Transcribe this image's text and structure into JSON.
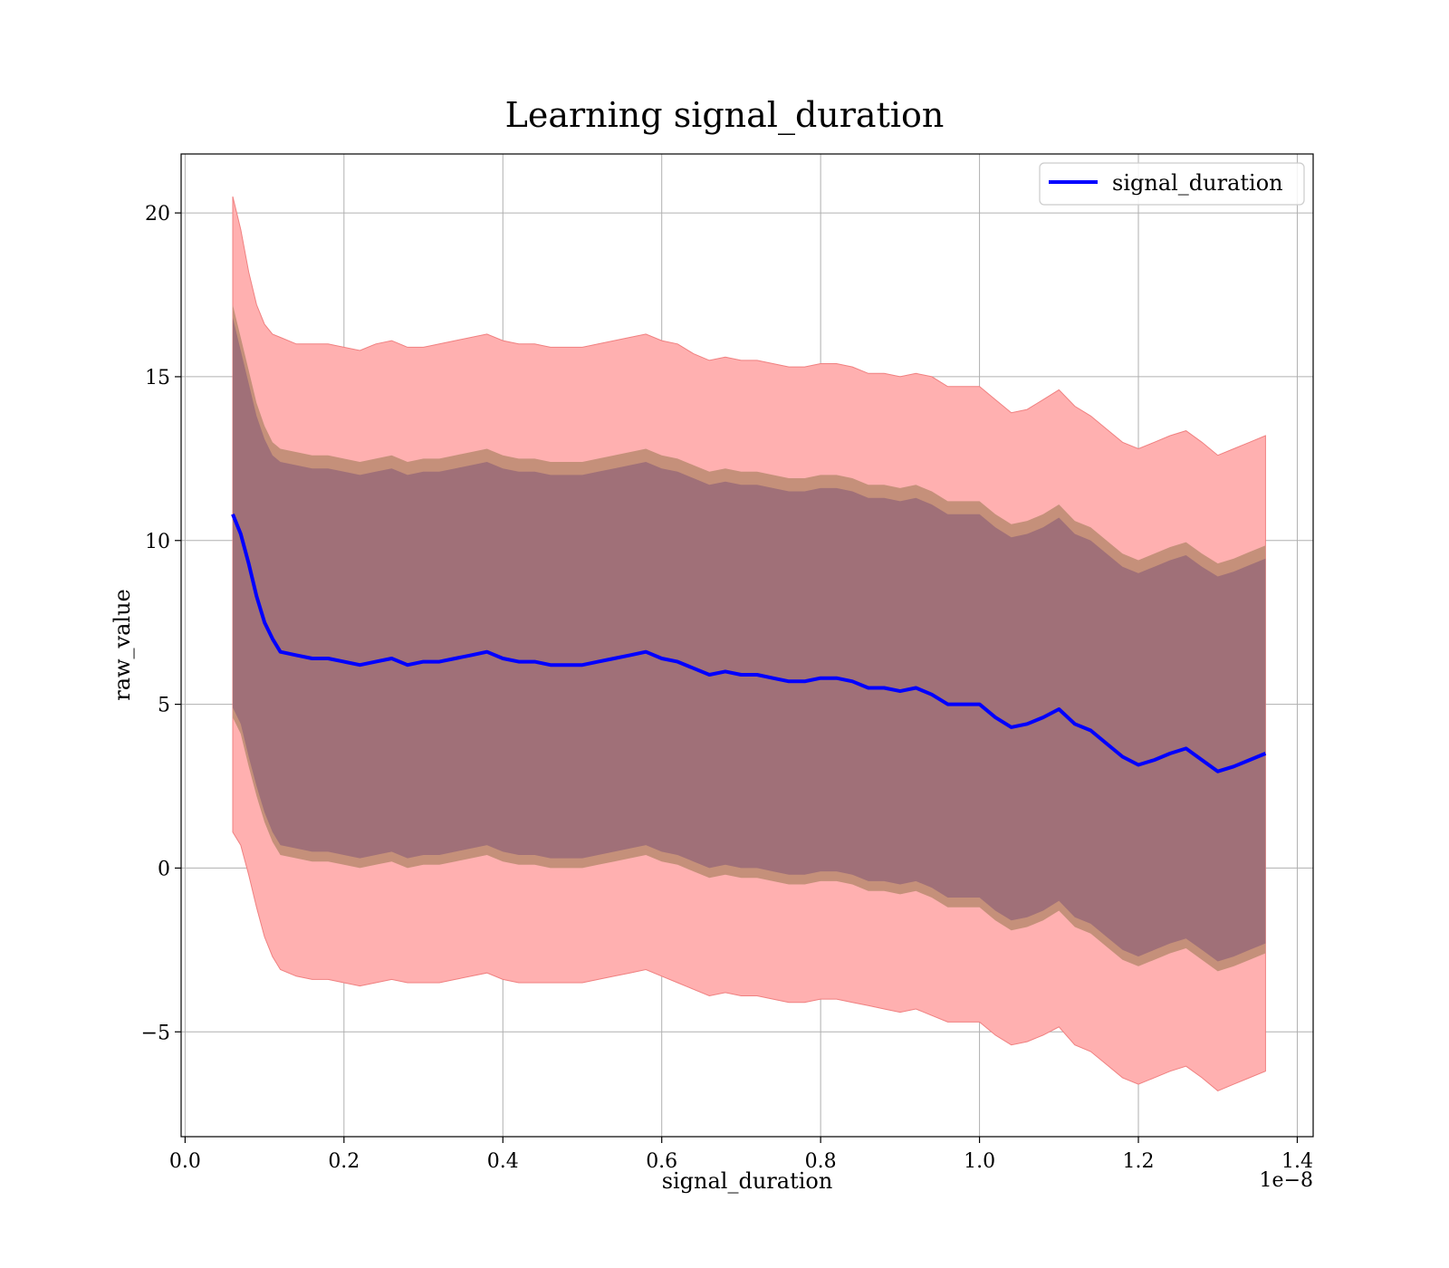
{
  "chart_data": {
    "type": "line",
    "title": "Learning signal_duration",
    "xlabel": "signal_duration",
    "ylabel": "raw_value",
    "x_offset_label": "1e−8",
    "xlim": [
      -0.005,
      1.42
    ],
    "ylim": [
      -8.2,
      21.8
    ],
    "x_ticks": [
      0.0,
      0.2,
      0.4,
      0.6,
      0.8,
      1.0,
      1.2,
      1.4
    ],
    "x_tick_labels": [
      "0.0",
      "0.2",
      "0.4",
      "0.6",
      "0.8",
      "1.0",
      "1.2",
      "1.4"
    ],
    "y_ticks": [
      -5,
      0,
      5,
      10,
      15,
      20
    ],
    "y_tick_labels": [
      "−5",
      "0",
      "5",
      "10",
      "15",
      "20"
    ],
    "grid": true,
    "legend_position": "top-right",
    "colors": {
      "line": "#0000ff",
      "outer_band": "#ffb0b0",
      "outer_band_edge": "#f08080",
      "mid_band": "#c5907a",
      "inner_band": "#a07078"
    },
    "series": [
      {
        "name": "signal_duration",
        "x": [
          0.06,
          0.07,
          0.08,
          0.09,
          0.1,
          0.11,
          0.12,
          0.14,
          0.16,
          0.18,
          0.2,
          0.22,
          0.24,
          0.26,
          0.28,
          0.3,
          0.32,
          0.34,
          0.36,
          0.38,
          0.4,
          0.42,
          0.44,
          0.46,
          0.48,
          0.5,
          0.52,
          0.54,
          0.56,
          0.58,
          0.6,
          0.62,
          0.64,
          0.66,
          0.68,
          0.7,
          0.72,
          0.74,
          0.76,
          0.78,
          0.8,
          0.82,
          0.84,
          0.86,
          0.88,
          0.9,
          0.92,
          0.94,
          0.96,
          0.98,
          1.0,
          1.02,
          1.04,
          1.06,
          1.08,
          1.1,
          1.12,
          1.14,
          1.16,
          1.18,
          1.2,
          1.22,
          1.24,
          1.26,
          1.28,
          1.3,
          1.32,
          1.34,
          1.36
        ],
        "values": [
          10.8,
          10.2,
          9.3,
          8.3,
          7.5,
          7.0,
          6.6,
          6.5,
          6.4,
          6.4,
          6.3,
          6.2,
          6.3,
          6.4,
          6.2,
          6.3,
          6.3,
          6.4,
          6.5,
          6.6,
          6.4,
          6.3,
          6.3,
          6.2,
          6.2,
          6.2,
          6.3,
          6.4,
          6.5,
          6.6,
          6.4,
          6.3,
          6.1,
          5.9,
          6.0,
          5.9,
          5.9,
          5.8,
          5.7,
          5.7,
          5.8,
          5.8,
          5.7,
          5.5,
          5.5,
          5.4,
          5.5,
          5.3,
          5.0,
          5.0,
          5.0,
          4.6,
          4.3,
          4.4,
          4.6,
          4.85,
          4.4,
          4.2,
          3.8,
          3.4,
          3.15,
          3.3,
          3.5,
          3.65,
          3.3,
          2.95,
          3.1,
          3.3,
          3.5
        ],
        "outer_upper": [
          20.5,
          19.5,
          18.2,
          17.2,
          16.6,
          16.3,
          16.2,
          16.0,
          16.0,
          16.0,
          15.9,
          15.8,
          16.0,
          16.1,
          15.9,
          15.9,
          16.0,
          16.1,
          16.2,
          16.3,
          16.1,
          16.0,
          16.0,
          15.9,
          15.9,
          15.9,
          16.0,
          16.1,
          16.2,
          16.3,
          16.1,
          16.0,
          15.7,
          15.5,
          15.6,
          15.5,
          15.5,
          15.4,
          15.3,
          15.3,
          15.4,
          15.4,
          15.3,
          15.1,
          15.1,
          15.0,
          15.1,
          15.0,
          14.7,
          14.7,
          14.7,
          14.3,
          13.9,
          14.0,
          14.3,
          14.6,
          14.1,
          13.8,
          13.4,
          13.0,
          12.8,
          13.0,
          13.2,
          13.35,
          13.0,
          12.6,
          12.8,
          13.0,
          13.2
        ],
        "outer_lower": [
          1.1,
          0.7,
          -0.2,
          -1.2,
          -2.1,
          -2.7,
          -3.1,
          -3.3,
          -3.4,
          -3.4,
          -3.5,
          -3.6,
          -3.5,
          -3.4,
          -3.5,
          -3.5,
          -3.5,
          -3.4,
          -3.3,
          -3.2,
          -3.4,
          -3.5,
          -3.5,
          -3.5,
          -3.5,
          -3.5,
          -3.4,
          -3.3,
          -3.2,
          -3.1,
          -3.3,
          -3.5,
          -3.7,
          -3.9,
          -3.8,
          -3.9,
          -3.9,
          -4.0,
          -4.1,
          -4.1,
          -4.0,
          -4.0,
          -4.1,
          -4.2,
          -4.3,
          -4.4,
          -4.3,
          -4.5,
          -4.7,
          -4.7,
          -4.7,
          -5.1,
          -5.4,
          -5.3,
          -5.1,
          -4.85,
          -5.4,
          -5.6,
          -6.0,
          -6.4,
          -6.6,
          -6.4,
          -6.2,
          -6.05,
          -6.4,
          -6.8,
          -6.6,
          -6.4,
          -6.2
        ],
        "mid_upper": [
          17.2,
          16.2,
          15.2,
          14.2,
          13.5,
          13.0,
          12.8,
          12.7,
          12.6,
          12.6,
          12.5,
          12.4,
          12.5,
          12.6,
          12.4,
          12.5,
          12.5,
          12.6,
          12.7,
          12.8,
          12.6,
          12.5,
          12.5,
          12.4,
          12.4,
          12.4,
          12.5,
          12.6,
          12.7,
          12.8,
          12.6,
          12.5,
          12.3,
          12.1,
          12.2,
          12.1,
          12.1,
          12.0,
          11.9,
          11.9,
          12.0,
          12.0,
          11.9,
          11.7,
          11.7,
          11.6,
          11.7,
          11.5,
          11.2,
          11.2,
          11.2,
          10.8,
          10.5,
          10.6,
          10.8,
          11.1,
          10.6,
          10.4,
          10.0,
          9.6,
          9.4,
          9.6,
          9.8,
          9.95,
          9.6,
          9.3,
          9.45,
          9.65,
          9.85
        ],
        "mid_lower": [
          4.6,
          4.1,
          3.1,
          2.2,
          1.4,
          0.8,
          0.4,
          0.3,
          0.2,
          0.2,
          0.1,
          0.0,
          0.1,
          0.2,
          0.0,
          0.1,
          0.1,
          0.2,
          0.3,
          0.4,
          0.2,
          0.1,
          0.1,
          0.0,
          0.0,
          0.0,
          0.1,
          0.2,
          0.3,
          0.4,
          0.2,
          0.1,
          -0.1,
          -0.3,
          -0.2,
          -0.3,
          -0.3,
          -0.4,
          -0.5,
          -0.5,
          -0.4,
          -0.4,
          -0.5,
          -0.7,
          -0.7,
          -0.8,
          -0.7,
          -0.9,
          -1.2,
          -1.2,
          -1.2,
          -1.6,
          -1.9,
          -1.8,
          -1.6,
          -1.3,
          -1.8,
          -2.0,
          -2.4,
          -2.8,
          -3.0,
          -2.8,
          -2.6,
          -2.45,
          -2.8,
          -3.15,
          -3.0,
          -2.8,
          -2.6
        ],
        "inner_upper": [
          16.8,
          15.8,
          14.8,
          13.8,
          13.1,
          12.6,
          12.4,
          12.3,
          12.2,
          12.2,
          12.1,
          12.0,
          12.1,
          12.2,
          12.0,
          12.1,
          12.1,
          12.2,
          12.3,
          12.4,
          12.2,
          12.1,
          12.1,
          12.0,
          12.0,
          12.0,
          12.1,
          12.2,
          12.3,
          12.4,
          12.2,
          12.1,
          11.9,
          11.7,
          11.8,
          11.7,
          11.7,
          11.6,
          11.5,
          11.5,
          11.6,
          11.6,
          11.5,
          11.3,
          11.3,
          11.2,
          11.3,
          11.1,
          10.8,
          10.8,
          10.8,
          10.4,
          10.1,
          10.2,
          10.4,
          10.7,
          10.2,
          10.0,
          9.6,
          9.2,
          9.0,
          9.2,
          9.4,
          9.55,
          9.2,
          8.9,
          9.05,
          9.25,
          9.45
        ],
        "inner_lower": [
          4.9,
          4.4,
          3.4,
          2.5,
          1.7,
          1.1,
          0.7,
          0.6,
          0.5,
          0.5,
          0.4,
          0.3,
          0.4,
          0.5,
          0.3,
          0.4,
          0.4,
          0.5,
          0.6,
          0.7,
          0.5,
          0.4,
          0.4,
          0.3,
          0.3,
          0.3,
          0.4,
          0.5,
          0.6,
          0.7,
          0.5,
          0.4,
          0.2,
          0.0,
          0.1,
          0.0,
          0.0,
          -0.1,
          -0.2,
          -0.2,
          -0.1,
          -0.1,
          -0.2,
          -0.4,
          -0.4,
          -0.5,
          -0.4,
          -0.6,
          -0.9,
          -0.9,
          -0.9,
          -1.3,
          -1.6,
          -1.5,
          -1.3,
          -1.0,
          -1.5,
          -1.7,
          -2.1,
          -2.5,
          -2.7,
          -2.5,
          -2.3,
          -2.15,
          -2.5,
          -2.85,
          -2.7,
          -2.5,
          -2.3
        ]
      }
    ]
  }
}
